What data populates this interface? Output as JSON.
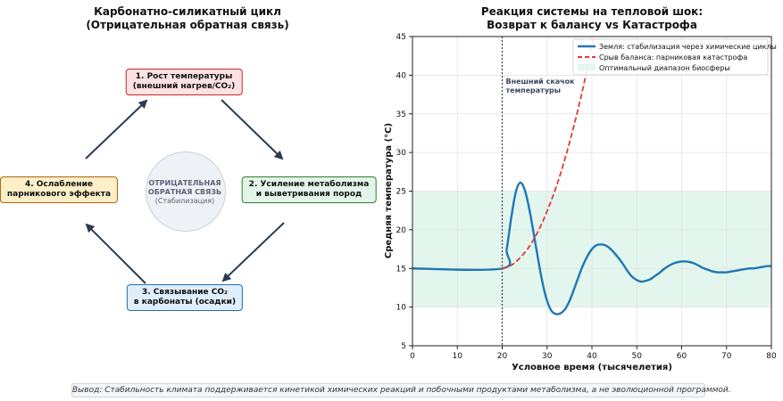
{
  "left_panel": {
    "title_line1": "Карбонатно-силикатный цикл",
    "title_line2": "(Отрицательная обратная связь)",
    "nodes": [
      {
        "line1": "1. Рост температуры",
        "line2": "(внешний нагрев/CO₂)",
        "color": "#c62828"
      },
      {
        "line1": "2. Усиление метаболизма",
        "line2": "и выветривания пород",
        "color": "#2e7d32"
      },
      {
        "line1": "3. Связывание CO₂",
        "line2": "в карбонаты (осадки)",
        "color": "#1f6fb0"
      },
      {
        "line1": "4. Ослабление",
        "line2": "парникового эффекта",
        "color": "#b45f06"
      }
    ],
    "center": {
      "line1": "ОТРИЦАТЕЛЬНАЯ",
      "line2": "ОБРАТНАЯ СВЯЗЬ",
      "line3": "(Стабилизация)"
    },
    "arrow_color": "#2b3a55"
  },
  "right_panel": {
    "title_line1": "Реакция системы на тепловой шок:",
    "title_line2": "Возврат к балансу vs Катастрофа"
  },
  "footer": "Вывод: Стабильность климата поддерживается кинетикой химических реакций и побочными продуктами метаболизма, а не эволюционной программой.",
  "chart_data": {
    "type": "line",
    "xlabel": "Условное время (тысячелетия)",
    "ylabel": "Средняя температура (°C)",
    "xlim": [
      0,
      80
    ],
    "ylim": [
      5,
      45
    ],
    "xticks": [
      0,
      10,
      20,
      30,
      40,
      50,
      60,
      70,
      80
    ],
    "yticks": [
      5,
      10,
      15,
      20,
      25,
      30,
      35,
      40,
      45
    ],
    "grid": true,
    "legend_position": "top-right",
    "band": {
      "name": "Оптимальный диапазон биосферы",
      "y0": 10,
      "y1": 25,
      "color": "#e3f6ee"
    },
    "vline": {
      "x": 20,
      "label_line1": "Внешний скачок",
      "label_line2": "температуры",
      "color": "#3a4660"
    },
    "series": [
      {
        "name": "Земля: стабилизация через химические циклы",
        "color": "#1f77b4",
        "style": "solid",
        "x": [
          0,
          20,
          21,
          22,
          23,
          24,
          25,
          26,
          27,
          28,
          29,
          30,
          31,
          32,
          33,
          34,
          35,
          36,
          37,
          38,
          39,
          40,
          41,
          42,
          43,
          44,
          45,
          46,
          47,
          48,
          49,
          50,
          51,
          52,
          53,
          54,
          55,
          56,
          57,
          58,
          59,
          60,
          61,
          62,
          63,
          64,
          65,
          66,
          67,
          68,
          69,
          70,
          71,
          72,
          73,
          74,
          75,
          76,
          77,
          78,
          79,
          80
        ],
        "y": [
          15,
          15,
          17.5,
          21.5,
          24.8,
          26.1,
          25.2,
          22.8,
          19.6,
          16.2,
          13.1,
          10.8,
          9.5,
          9.1,
          9.2,
          9.7,
          10.8,
          12.3,
          13.9,
          15.4,
          16.6,
          17.5,
          18.0,
          18.1,
          18.0,
          17.6,
          17.0,
          16.3,
          15.5,
          14.6,
          13.9,
          13.5,
          13.3,
          13.4,
          13.6,
          14.0,
          14.4,
          14.9,
          15.3,
          15.6,
          15.8,
          15.9,
          15.9,
          15.8,
          15.6,
          15.3,
          15.0,
          14.8,
          14.6,
          14.5,
          14.5,
          14.5,
          14.6,
          14.7,
          14.8,
          14.9,
          15.0,
          15.0,
          15.1,
          15.2,
          15.3,
          15.3
        ]
      },
      {
        "name": "Срыв баланса: парниковая катастрофа",
        "color": "#e53935",
        "style": "dashed",
        "x": [
          20,
          22,
          24,
          26,
          28,
          30,
          32,
          34,
          36,
          38,
          40,
          41
        ],
        "y": [
          15,
          15.4,
          16.4,
          17.8,
          19.8,
          22.4,
          25.5,
          29.2,
          33.5,
          38.3,
          43.8,
          46.8
        ]
      }
    ]
  }
}
